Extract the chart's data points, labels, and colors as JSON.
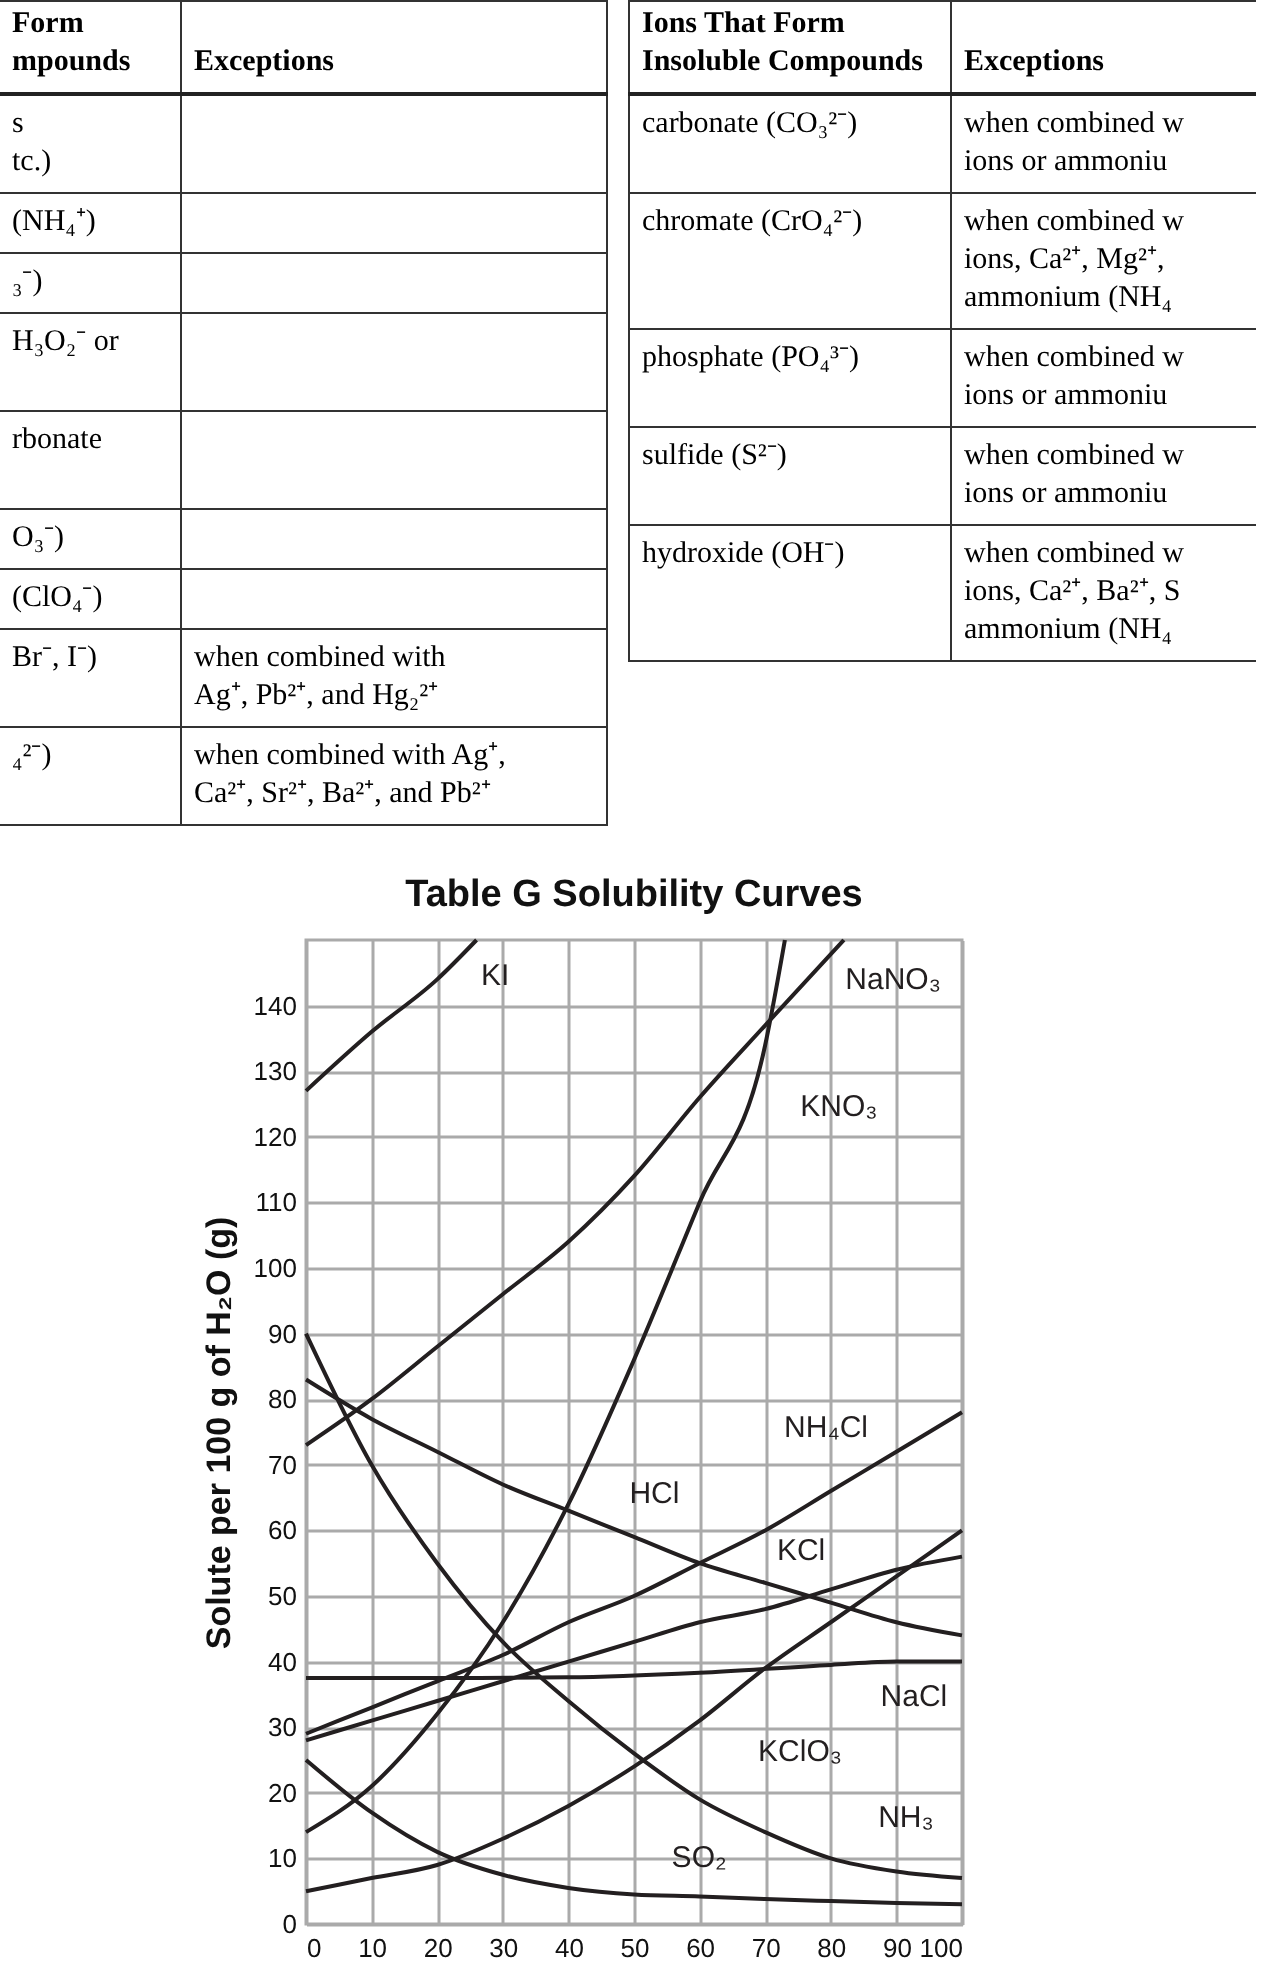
{
  "chart_data": [
    {
      "type": "other",
      "annotations": [
        "Form\nmpounds",
        "Exceptions",
        "s\ntc.)",
        null,
        "(NH₄⁺)",
        null,
        "₃⁻)",
        null,
        "H₃O₂⁻ or\n ",
        null,
        "rbonate\n ",
        null,
        "O₃⁻)",
        null,
        "(ClO₄⁻)",
        null,
        "Br⁻, I⁻)",
        "when combined with\nAg⁺, Pb²⁺, and Hg₂²⁺",
        "₄²⁻)",
        "when combined with Ag⁺,\nCa²⁺, Sr²⁺, Ba²⁺, and Pb²⁺"
      ]
    },
    {
      "type": "other",
      "annotations": [
        "Ions That Form\nInsoluble Compounds",
        "Exceptions",
        "carbonate (CO₃²⁻)",
        "when combined w\nions or ammoniu",
        "chromate (CrO₄²⁻)",
        "when combined w\nions, Ca²⁺, Mg²⁺,\nammonium (NH₄",
        "phosphate (PO₄³⁻)",
        "when combined w\nions or ammoniu",
        "sulfide (S²⁻)",
        "when combined w\nions or ammoniu",
        "hydroxide (OH⁻)",
        "when combined w\nions, Ca²⁺, Ba²⁺, S\nammonium (NH₄"
      ]
    },
    {
      "type": "line",
      "title": "Table G   Solubility Curves",
      "ylabel": "Solute per 100 g of H₂O (g)",
      "xlim": [
        0,
        100
      ],
      "ylim": [
        0,
        150
      ],
      "xticks": [
        0,
        10,
        20,
        30,
        40,
        50,
        60,
        70,
        80,
        90,
        100
      ],
      "yticks": [
        0,
        10,
        20,
        30,
        40,
        50,
        60,
        70,
        80,
        90,
        100,
        110,
        120,
        130,
        140
      ],
      "grid": true,
      "series": [
        {
          "color": "#231f20",
          "x": [
            0,
            10,
            20,
            26
          ],
          "values": [
            127,
            136,
            144,
            150
          ]
        },
        {
          "color": "#231f20",
          "x": [
            0,
            10,
            20,
            30,
            40,
            50,
            60,
            70,
            82
          ],
          "values": [
            73,
            80,
            88,
            96,
            104,
            114,
            126,
            137,
            150
          ]
        },
        {
          "color": "#231f20",
          "x": [
            0,
            10,
            20,
            30,
            40,
            50,
            60,
            70,
            73
          ],
          "values": [
            14,
            21,
            32,
            46,
            64,
            86,
            110,
            134,
            150
          ]
        },
        {
          "color": "#231f20",
          "x": [
            0,
            10,
            20,
            30,
            40,
            50,
            60,
            70,
            80,
            90,
            100
          ],
          "values": [
            83,
            77,
            72,
            67,
            63,
            59,
            55,
            52,
            49,
            46,
            44
          ]
        },
        {
          "color": "#231f20",
          "x": [
            0,
            10,
            20,
            30,
            40,
            50,
            60,
            70,
            80,
            90,
            100
          ],
          "values": [
            29,
            33,
            37,
            41,
            46,
            50,
            55,
            60,
            66,
            72,
            78
          ]
        },
        {
          "color": "#231f20",
          "x": [
            0,
            10,
            20,
            30,
            40,
            50,
            60,
            70,
            80,
            90,
            100
          ],
          "values": [
            28,
            31,
            34,
            37,
            40,
            43,
            46,
            48,
            51,
            54,
            56
          ]
        },
        {
          "color": "#231f20",
          "x": [
            0,
            20,
            40,
            60,
            80,
            90,
            100
          ],
          "values": [
            37.5,
            37.5,
            37.6,
            38.3,
            39.5,
            40,
            40
          ]
        },
        {
          "color": "#231f20",
          "x": [
            0,
            10,
            20,
            30,
            40,
            50,
            60,
            70,
            80,
            90,
            100
          ],
          "values": [
            5,
            7,
            9,
            13,
            18,
            24,
            31,
            39,
            46,
            53,
            60
          ]
        },
        {
          "color": "#231f20",
          "x": [
            0,
            10,
            20,
            30,
            40,
            50,
            60,
            70,
            80,
            90,
            100
          ],
          "values": [
            90,
            70,
            55,
            43,
            34,
            26,
            19,
            14,
            10,
            8,
            7
          ]
        },
        {
          "color": "#231f20",
          "x": [
            0,
            10,
            20,
            30,
            40,
            50,
            60,
            70,
            80,
            90,
            100
          ],
          "values": [
            25,
            17,
            11,
            7.5,
            5.5,
            4.5,
            4.2,
            3.8,
            3.5,
            3.2,
            3
          ]
        }
      ],
      "annotations": [
        {
          "text": "KI",
          "x": 20,
          "y": 144
        },
        {
          "text": "NaNO₃",
          "x": 77,
          "y": 144.7
        },
        {
          "text": "KNO₃",
          "x": 66,
          "y": 124.4
        },
        {
          "text": "NH₄Cl",
          "x": 75,
          "y": 63
        },
        {
          "text": "HCl",
          "x": 40,
          "y": 63
        },
        {
          "text": "KCl",
          "x": 84,
          "y": 52.2
        },
        {
          "text": "NaCl",
          "x": 82,
          "y": 39.6
        },
        {
          "text": "KClO₃",
          "x": 62.5,
          "y": 32.75
        },
        {
          "text": "NH₃",
          "x": 82,
          "y": 9.6
        },
        {
          "text": "SO₂",
          "x": 52,
          "y": 4.4
        }
      ]
    }
  ]
}
